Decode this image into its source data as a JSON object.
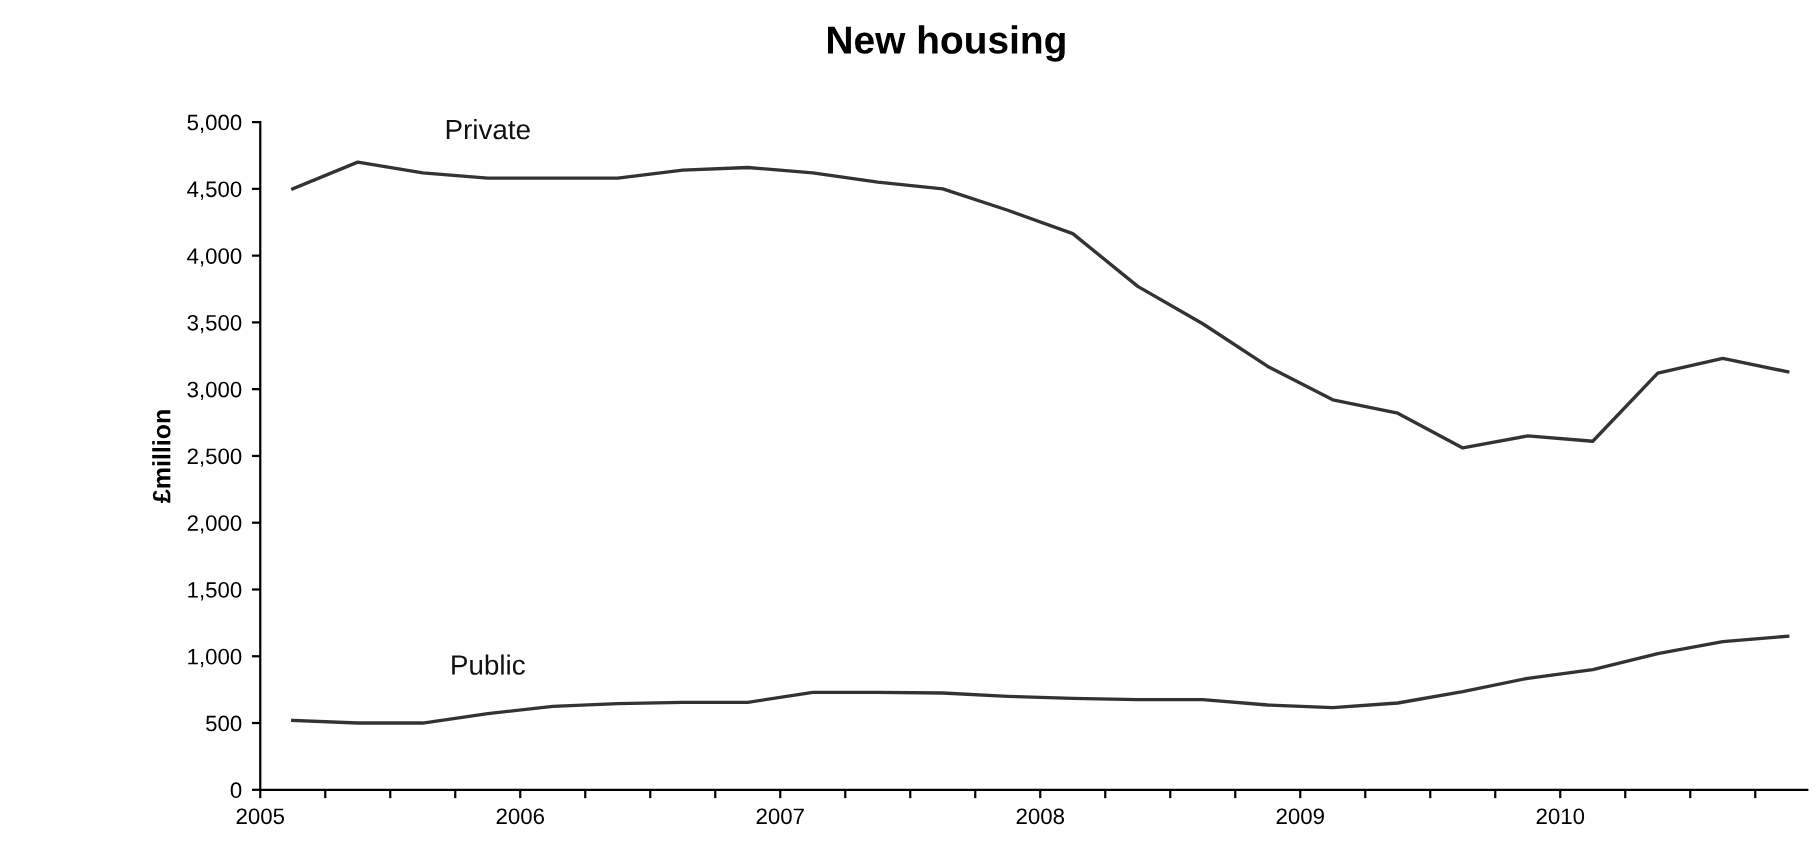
{
  "chart_data": {
    "type": "line",
    "title": "New housing",
    "ylabel": "£million",
    "x": [
      2005.125,
      2005.375,
      2005.625,
      2005.875,
      2006.125,
      2006.375,
      2006.625,
      2006.875,
      2007.125,
      2007.375,
      2007.625,
      2007.875,
      2008.125,
      2008.375,
      2008.625,
      2008.875,
      2009.125,
      2009.375,
      2009.625,
      2009.875,
      2010.125,
      2010.375,
      2010.625,
      2010.875
    ],
    "series": [
      {
        "name": "Private",
        "color": "#333333",
        "values": [
          4500,
          4700,
          4620,
          4580,
          4580,
          4580,
          4640,
          4660,
          4620,
          4550,
          4500,
          4340,
          4165,
          3770,
          3490,
          3170,
          2920,
          2820,
          2560,
          2650,
          2610,
          3120,
          3230,
          3130
        ]
      },
      {
        "name": "Public",
        "color": "#333333",
        "values": [
          520,
          500,
          500,
          570,
          625,
          645,
          655,
          655,
          730,
          730,
          725,
          700,
          685,
          675,
          675,
          635,
          615,
          650,
          735,
          835,
          900,
          1020,
          1110,
          1150
        ]
      }
    ],
    "xlim": [
      2005,
      2010.95
    ],
    "xticks": [
      2005,
      {
        "value": 2005.25,
        "label": null
      },
      {
        "value": 2005.5,
        "label": null
      },
      {
        "value": 2005.75,
        "label": null
      },
      2006,
      {
        "value": 2006.25,
        "label": null
      },
      {
        "value": 2006.5,
        "label": null
      },
      {
        "value": 2006.75,
        "label": null
      },
      2007,
      {
        "value": 2007.25,
        "label": null
      },
      {
        "value": 2007.5,
        "label": null
      },
      {
        "value": 2007.75,
        "label": null
      },
      2008,
      {
        "value": 2008.25,
        "label": null
      },
      {
        "value": 2008.5,
        "label": null
      },
      {
        "value": 2008.75,
        "label": null
      },
      2009,
      {
        "value": 2009.25,
        "label": null
      },
      {
        "value": 2009.5,
        "label": null
      },
      {
        "value": 2009.75,
        "label": null
      },
      2010,
      {
        "value": 2010.25,
        "label": null
      },
      {
        "value": 2010.5,
        "label": null
      },
      {
        "value": 2010.75,
        "label": null
      }
    ],
    "ylim": [
      0,
      5000
    ],
    "yticks": [
      {
        "value": 0,
        "label": "0"
      },
      {
        "value": 500,
        "label": "500"
      },
      {
        "value": 1000,
        "label": "1,000"
      },
      {
        "value": 1500,
        "label": "1,500"
      },
      {
        "value": 2000,
        "label": "2,000"
      },
      {
        "value": 2500,
        "label": "2,500"
      },
      {
        "value": 3000,
        "label": "3,000"
      },
      {
        "value": 3500,
        "label": "3,500"
      },
      {
        "value": 4000,
        "label": "4,000"
      },
      {
        "value": 4500,
        "label": "4,500"
      },
      {
        "value": 5000,
        "label": "5,000"
      }
    ],
    "grid": false,
    "legend": false,
    "marker": "none",
    "line_style": "solid"
  }
}
